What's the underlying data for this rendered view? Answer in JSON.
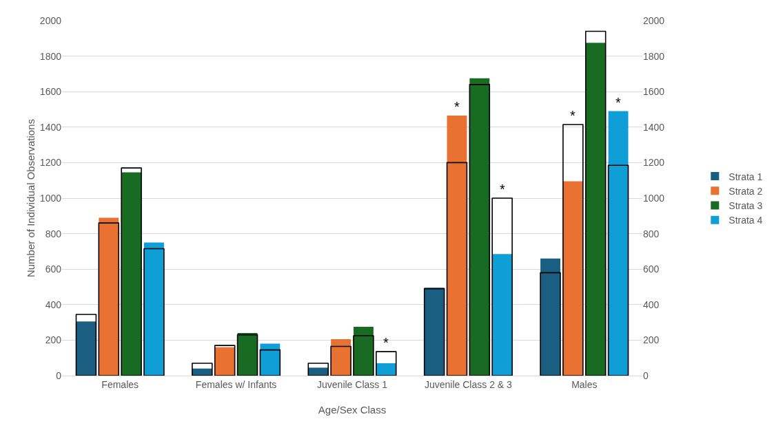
{
  "chart_data": {
    "type": "bar",
    "xlabel": "Age/Sex Class",
    "ylabel": "Number of Individual Observations",
    "categories": [
      "Females",
      "Females w/ Infants",
      "Juvenile Class 1",
      "Juvenile Class 2 & 3",
      "Males"
    ],
    "series": [
      {
        "name": "Strata 1",
        "color": "#1a5e82",
        "values": [
          305,
          40,
          45,
          495,
          660
        ]
      },
      {
        "name": "Strata 2",
        "color": "#e97132",
        "values": [
          890,
          160,
          205,
          1465,
          1095
        ]
      },
      {
        "name": "Strata 3",
        "color": "#196b24",
        "values": [
          1145,
          240,
          275,
          1675,
          1875
        ]
      },
      {
        "name": "Strata 4",
        "color": "#0f9ed5",
        "values": [
          750,
          180,
          70,
          685,
          1490
        ]
      },
      {
        "color": "#000000",
        "line_style": "solid",
        "values": [
          345,
          70,
          70,
          490,
          580
        ]
      },
      {
        "color": "#000000",
        "line_style": "solid",
        "values": [
          860,
          170,
          165,
          1200,
          1415
        ]
      },
      {
        "color": "#000000",
        "line_style": "solid",
        "values": [
          1170,
          230,
          225,
          1640,
          1940
        ]
      },
      {
        "color": "#000000",
        "line_style": "solid",
        "values": [
          715,
          145,
          135,
          1000,
          1185
        ]
      }
    ],
    "annotations": [
      {
        "text": "*",
        "x": "Juvenile Class 1",
        "y": 135
      },
      {
        "text": "*",
        "x": "Juvenile Class 2 & 3",
        "y": 1465
      },
      {
        "text": "*",
        "x": "Juvenile Class 2 & 3",
        "y": 1000
      },
      {
        "text": "*",
        "x": "Males",
        "y": 1415
      },
      {
        "text": "*",
        "x": "Males",
        "y": 1490
      }
    ],
    "ylim": [
      0,
      2000
    ],
    "yticks": [
      0,
      200,
      400,
      600,
      800,
      1000,
      1200,
      1400,
      1600,
      1800,
      2000
    ],
    "y2lim": [
      0,
      2000
    ],
    "y2ticks": [
      0,
      200,
      400,
      600,
      800,
      1000,
      1200,
      1400,
      1600,
      1800,
      2000
    ],
    "grid": "y",
    "legend": "right"
  }
}
